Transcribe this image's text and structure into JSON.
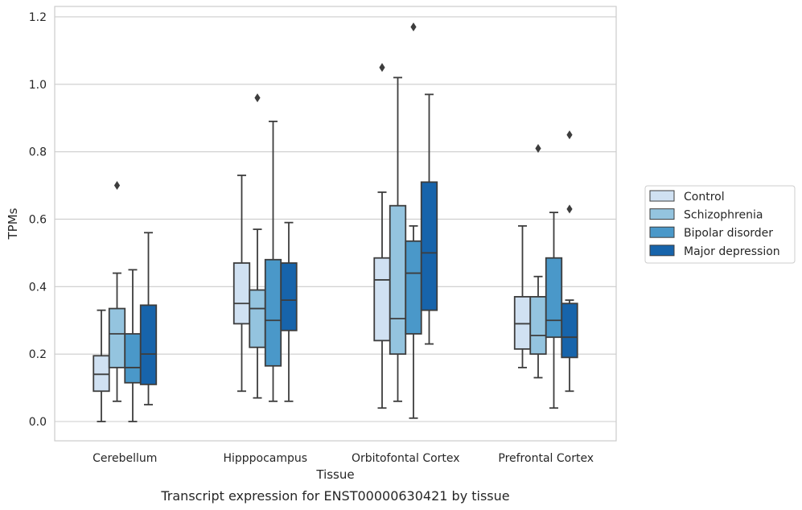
{
  "chart_data": {
    "type": "box",
    "title": "",
    "caption": "Transcript expression for ENST00000630421 by tissue",
    "xlabel": "Tissue",
    "ylabel": "TPMs",
    "ylim": [
      -0.055,
      1.23
    ],
    "yticks": [
      0.0,
      0.2,
      0.4,
      0.6,
      0.8,
      1.0,
      1.2
    ],
    "ytick_labels": [
      "0.0",
      "0.2",
      "0.4",
      "0.6",
      "0.8",
      "1.0",
      "1.2"
    ],
    "grid": "horizontal",
    "legend_position": "right-outside",
    "categories": [
      "Cerebellum",
      "Hipppocampus",
      "Orbitofontal Cortex",
      "Prefrontal Cortex"
    ],
    "series": [
      {
        "name": "Control",
        "color": "#d0e1f2",
        "boxes": [
          {
            "min": 0.0,
            "q1": 0.09,
            "median": 0.14,
            "q3": 0.195,
            "max": 0.33,
            "outliers": []
          },
          {
            "min": 0.09,
            "q1": 0.29,
            "median": 0.35,
            "q3": 0.47,
            "max": 0.73,
            "outliers": []
          },
          {
            "min": 0.04,
            "q1": 0.24,
            "median": 0.42,
            "q3": 0.485,
            "max": 0.68,
            "outliers": [
              1.05
            ]
          },
          {
            "min": 0.16,
            "q1": 0.215,
            "median": 0.29,
            "q3": 0.37,
            "max": 0.58,
            "outliers": []
          }
        ]
      },
      {
        "name": "Schizophrenia",
        "color": "#94c4df",
        "boxes": [
          {
            "min": 0.06,
            "q1": 0.16,
            "median": 0.26,
            "q3": 0.335,
            "max": 0.44,
            "outliers": [
              0.7
            ]
          },
          {
            "min": 0.07,
            "q1": 0.22,
            "median": 0.335,
            "q3": 0.39,
            "max": 0.57,
            "outliers": [
              0.96
            ]
          },
          {
            "min": 0.06,
            "q1": 0.2,
            "median": 0.305,
            "q3": 0.64,
            "max": 1.02,
            "outliers": []
          },
          {
            "min": 0.13,
            "q1": 0.2,
            "median": 0.255,
            "q3": 0.37,
            "max": 0.43,
            "outliers": [
              0.81
            ]
          }
        ]
      },
      {
        "name": "Bipolar disorder",
        "color": "#4a98c9",
        "boxes": [
          {
            "min": 0.0,
            "q1": 0.115,
            "median": 0.16,
            "q3": 0.26,
            "max": 0.45,
            "outliers": []
          },
          {
            "min": 0.06,
            "q1": 0.165,
            "median": 0.3,
            "q3": 0.48,
            "max": 0.89,
            "outliers": []
          },
          {
            "min": 0.01,
            "q1": 0.26,
            "median": 0.44,
            "q3": 0.535,
            "max": 0.58,
            "outliers": [
              1.17
            ]
          },
          {
            "min": 0.04,
            "q1": 0.25,
            "median": 0.3,
            "q3": 0.485,
            "max": 0.62,
            "outliers": []
          }
        ]
      },
      {
        "name": "Major depression",
        "color": "#1764ab",
        "boxes": [
          {
            "min": 0.05,
            "q1": 0.11,
            "median": 0.2,
            "q3": 0.345,
            "max": 0.56,
            "outliers": []
          },
          {
            "min": 0.06,
            "q1": 0.27,
            "median": 0.36,
            "q3": 0.47,
            "max": 0.59,
            "outliers": []
          },
          {
            "min": 0.23,
            "q1": 0.33,
            "median": 0.5,
            "q3": 0.71,
            "max": 0.97,
            "outliers": []
          },
          {
            "min": 0.09,
            "q1": 0.19,
            "median": 0.25,
            "q3": 0.35,
            "max": 0.36,
            "outliers": [
              0.63,
              0.85
            ]
          }
        ]
      }
    ]
  }
}
